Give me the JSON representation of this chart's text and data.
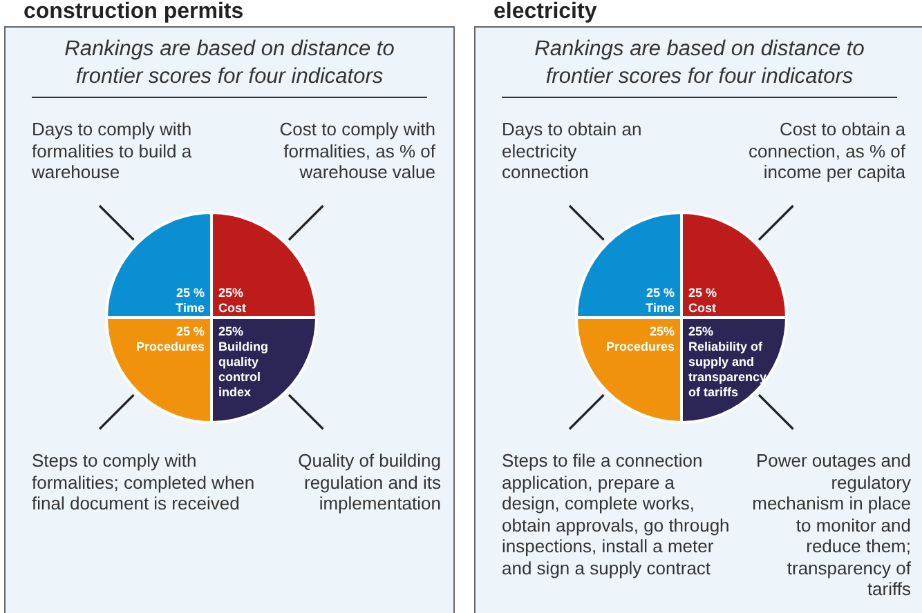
{
  "chart_data": [
    {
      "type": "pie",
      "title": "construction permits",
      "subtitle": "Rankings are based on distance to frontier scores for four indicators",
      "categories": [
        "Cost",
        "Building quality control index",
        "Procedures",
        "Time"
      ],
      "values": [
        25,
        25,
        25,
        25
      ],
      "value_labels": [
        "25%",
        "25%",
        "25 %",
        "25 %"
      ],
      "colors": [
        "#be1b1b",
        "#2c2656",
        "#f0920c",
        "#0a90d2"
      ],
      "annotations": [
        "Cost to comply with formalities, as % of warehouse value",
        "Quality of building regulation and its implementation",
        "Steps to comply with formalities; completed when final document is received",
        "Days to comply with formalities to build a warehouse"
      ],
      "legend": false
    },
    {
      "type": "pie",
      "title": "electricity",
      "subtitle": "Rankings are based on distance to frontier scores for four indicators",
      "categories": [
        "Cost",
        "Reliability of supply and transparency of tariffs",
        "Procedures",
        "Time"
      ],
      "values": [
        25,
        25,
        25,
        25
      ],
      "value_labels": [
        "25 %",
        "25%",
        "25%",
        "25 %"
      ],
      "colors": [
        "#be1b1b",
        "#2c2656",
        "#f0920c",
        "#0a90d2"
      ],
      "annotations": [
        "Cost to obtain a connection, as % of income per capita",
        "Power outages and regulatory mechanism in place to monitor and reduce them; transparency of tariffs",
        "Steps to file a connection application, prepare a design, complete works, obtain approvals, go through inspections, install a meter and sign a supply contract",
        "Days to obtain an electricity connection"
      ],
      "legend": false
    }
  ]
}
